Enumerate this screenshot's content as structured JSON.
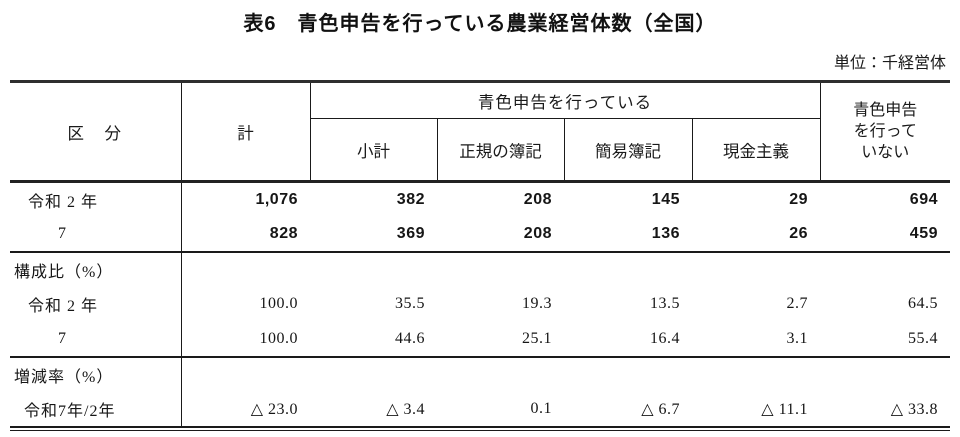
{
  "title": "表6　青色申告を行っている農業経営体数（全国）",
  "unit_label": "単位：千経営体",
  "table": {
    "header": {
      "kubun": "区　分",
      "total": "計",
      "blue_group": "青色申告を行っている",
      "subcolumns": [
        "小計",
        "正規の簿記",
        "簡易簿記",
        "現金主義"
      ],
      "not_blue": "青色申告\nを行って\nいない"
    },
    "rows": [
      {
        "label": "令和 2 年",
        "indent": "year",
        "bold": true,
        "values": [
          "1,076",
          "382",
          "208",
          "145",
          "29",
          "694"
        ]
      },
      {
        "label": "7",
        "indent": "year2",
        "bold": true,
        "values": [
          "828",
          "369",
          "208",
          "136",
          "26",
          "459"
        ]
      },
      {
        "label": "構成比（%）",
        "indent": "section",
        "bold": false,
        "values": [
          "",
          "",
          "",
          "",
          "",
          ""
        ]
      },
      {
        "label": "令和 2 年",
        "indent": "year",
        "bold": false,
        "values": [
          "100.0",
          "35.5",
          "19.3",
          "13.5",
          "2.7",
          "64.5"
        ]
      },
      {
        "label": "7",
        "indent": "year2",
        "bold": false,
        "values": [
          "100.0",
          "44.6",
          "25.1",
          "16.4",
          "3.1",
          "55.4"
        ]
      },
      {
        "label": "増減率（%）",
        "indent": "section",
        "bold": false,
        "values": [
          "",
          "",
          "",
          "",
          "",
          ""
        ]
      },
      {
        "label": "令和7年/2年",
        "indent": "ratio",
        "bold": false,
        "values": [
          "△ 23.0",
          "△ 3.4",
          "0.1",
          "△ 6.7",
          "△ 11.1",
          "△ 33.8"
        ]
      }
    ]
  }
}
